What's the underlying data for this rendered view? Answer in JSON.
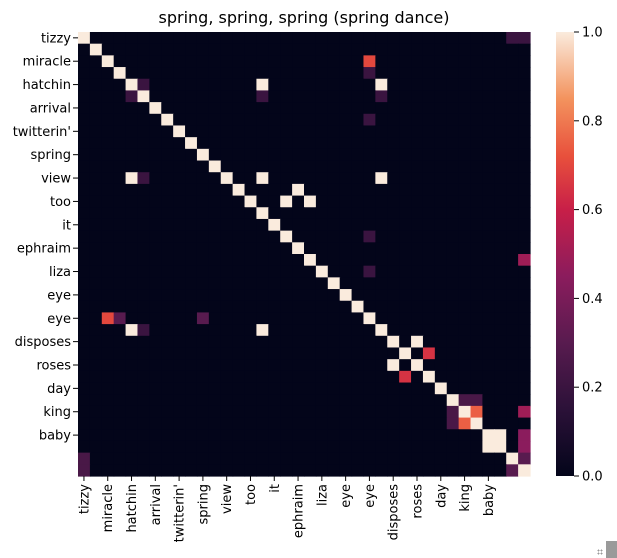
{
  "chart_data": {
    "type": "heatmap",
    "title": "spring, spring, spring (spring dance)",
    "x_tick_labels": [
      "tizzy",
      "miracle",
      "hatchin",
      "arrival",
      "twitterin'",
      "spring",
      "view",
      "too",
      "it",
      "ephraim",
      "liza",
      "eye",
      "eye",
      "disposes",
      "roses",
      "day",
      "king",
      "baby"
    ],
    "y_tick_labels": [
      "tizzy",
      "miracle",
      "hatchin",
      "arrival",
      "twitterin'",
      "spring",
      "view",
      "too",
      "it",
      "ephraim",
      "liza",
      "eye",
      "eye",
      "disposes",
      "roses",
      "day",
      "king",
      "baby"
    ],
    "rows": [
      [
        1,
        0,
        0,
        0,
        0,
        0,
        0,
        0,
        0,
        0,
        0,
        0,
        0,
        0,
        0,
        0,
        0,
        0,
        0,
        0,
        0,
        0,
        0,
        0,
        0,
        0,
        0,
        0,
        0,
        0,
        0,
        0,
        0,
        0,
        0,
        0,
        0.2,
        0.2
      ],
      [
        0,
        1,
        0,
        0,
        0,
        0,
        0,
        0,
        0,
        0,
        0,
        0,
        0,
        0,
        0,
        0,
        0,
        0,
        0,
        0,
        0,
        0,
        0,
        0,
        0,
        0,
        0,
        0,
        0,
        0,
        0,
        0,
        0,
        0,
        0,
        0,
        0,
        0
      ],
      [
        0,
        0,
        1,
        0,
        0,
        0,
        0,
        0,
        0,
        0,
        0,
        0,
        0,
        0,
        0,
        0,
        0,
        0,
        0,
        0,
        0,
        0,
        0,
        0,
        0.7,
        0,
        0,
        0,
        0,
        0,
        0,
        0,
        0,
        0,
        0,
        0,
        0,
        0
      ],
      [
        0,
        0,
        0,
        1,
        0,
        0,
        0,
        0,
        0,
        0,
        0,
        0,
        0,
        0,
        0,
        0,
        0,
        0,
        0,
        0,
        0,
        0,
        0,
        0,
        0.2,
        0,
        0,
        0,
        0,
        0,
        0,
        0,
        0,
        0,
        0,
        0,
        0,
        0
      ],
      [
        0,
        0,
        0,
        0,
        1,
        0.2,
        0,
        0,
        0,
        0,
        0,
        0,
        0,
        0,
        0,
        1,
        0,
        0,
        0,
        0,
        0,
        0,
        0,
        0,
        0,
        1,
        0,
        0,
        0,
        0,
        0,
        0,
        0,
        0,
        0,
        0,
        0,
        0
      ],
      [
        0,
        0,
        0,
        0,
        0.2,
        1,
        0,
        0,
        0,
        0,
        0,
        0,
        0,
        0,
        0,
        0.2,
        0,
        0,
        0,
        0,
        0,
        0,
        0,
        0,
        0,
        0.2,
        0,
        0,
        0,
        0,
        0,
        0,
        0,
        0,
        0,
        0,
        0,
        0
      ],
      [
        0,
        0,
        0,
        0,
        0,
        0,
        1,
        0,
        0,
        0,
        0,
        0,
        0,
        0,
        0,
        0,
        0,
        0,
        0,
        0,
        0,
        0,
        0,
        0,
        0,
        0,
        0,
        0,
        0,
        0,
        0,
        0,
        0,
        0,
        0,
        0,
        0,
        0
      ],
      [
        0,
        0,
        0,
        0,
        0,
        0,
        0,
        1,
        0,
        0,
        0,
        0,
        0,
        0,
        0,
        0,
        0,
        0,
        0,
        0,
        0,
        0,
        0,
        0,
        0.2,
        0,
        0,
        0,
        0,
        0,
        0,
        0,
        0,
        0,
        0,
        0,
        0,
        0
      ],
      [
        0,
        0,
        0,
        0,
        0,
        0,
        0,
        0,
        1,
        0,
        0,
        0,
        0,
        0,
        0,
        0,
        0,
        0,
        0,
        0,
        0,
        0,
        0,
        0,
        0,
        0,
        0,
        0,
        0,
        0,
        0,
        0,
        0,
        0,
        0,
        0,
        0,
        0
      ],
      [
        0,
        0,
        0,
        0,
        0,
        0,
        0,
        0,
        0,
        1,
        0,
        0,
        0,
        0,
        0,
        0,
        0,
        0,
        0,
        0,
        0,
        0,
        0,
        0,
        0,
        0,
        0,
        0,
        0,
        0,
        0,
        0,
        0,
        0,
        0,
        0,
        0,
        0
      ],
      [
        0,
        0,
        0,
        0,
        0,
        0,
        0,
        0,
        0,
        0,
        1,
        0,
        0,
        0,
        0,
        0,
        0,
        0,
        0,
        0,
        0,
        0,
        0,
        0,
        0,
        0,
        0,
        0,
        0,
        0,
        0,
        0,
        0,
        0,
        0,
        0,
        0,
        0
      ],
      [
        0,
        0,
        0,
        0,
        0,
        0,
        0,
        0,
        0,
        0,
        0,
        1,
        0,
        0,
        0,
        0,
        0,
        0,
        0,
        0,
        0,
        0,
        0,
        0,
        0,
        0,
        0,
        0,
        0,
        0,
        0,
        0,
        0,
        0,
        0,
        0,
        0,
        0
      ],
      [
        0,
        0,
        0,
        0,
        1,
        0.2,
        0,
        0,
        0,
        0,
        0,
        0,
        1,
        0,
        0,
        1,
        0,
        0,
        0,
        0,
        0,
        0,
        0,
        0,
        0,
        1,
        0,
        0,
        0,
        0,
        0,
        0,
        0,
        0,
        0,
        0,
        0,
        0
      ],
      [
        0,
        0,
        0,
        0,
        0,
        0,
        0,
        0,
        0,
        0,
        0,
        0,
        0,
        1,
        0,
        0,
        0,
        0,
        1,
        0,
        0,
        0,
        0,
        0,
        0,
        0,
        0,
        0,
        0,
        0,
        0,
        0,
        0,
        0,
        0,
        0,
        0,
        0
      ],
      [
        0,
        0,
        0,
        0,
        0,
        0,
        0,
        0,
        0,
        0,
        0,
        0,
        0,
        0,
        1,
        0,
        0,
        1,
        0,
        1,
        0,
        0,
        0,
        0,
        0,
        0,
        0,
        0,
        0,
        0,
        0,
        0,
        0,
        0,
        0,
        0,
        0,
        0
      ],
      [
        0,
        0,
        0,
        0,
        0,
        0,
        0,
        0,
        0,
        0,
        0,
        0,
        0,
        0,
        0,
        1,
        0,
        0,
        0,
        0,
        0,
        0,
        0,
        0,
        0,
        0,
        0,
        0,
        0,
        0,
        0,
        0,
        0,
        0,
        0,
        0,
        0,
        0
      ],
      [
        0,
        0,
        0,
        0,
        0,
        0,
        0,
        0,
        0,
        0,
        0,
        0,
        0,
        0,
        0,
        0,
        1,
        0,
        0,
        0,
        0,
        0,
        0,
        0,
        0,
        0,
        0,
        0,
        0,
        0,
        0,
        0,
        0,
        0,
        0,
        0,
        0,
        0
      ],
      [
        0,
        0,
        0,
        0,
        0,
        0,
        0,
        0,
        0,
        0,
        0,
        0,
        0,
        0,
        0,
        0,
        0,
        1,
        0,
        0,
        0,
        0,
        0,
        0,
        0.2,
        0,
        0,
        0,
        0,
        0,
        0,
        0,
        0,
        0,
        0,
        0,
        0,
        0
      ],
      [
        0,
        0,
        0,
        0,
        0,
        0,
        0,
        0,
        0,
        0,
        0,
        0,
        0,
        0,
        0,
        0,
        0,
        0,
        1,
        0,
        0,
        0,
        0,
        0,
        0,
        0,
        0,
        0,
        0,
        0,
        0,
        0,
        0,
        0,
        0,
        0,
        0,
        0
      ],
      [
        0,
        0,
        0,
        0,
        0,
        0,
        0,
        0,
        0,
        0,
        0,
        0,
        0,
        0,
        0,
        0,
        0,
        0,
        0,
        1,
        0,
        0,
        0,
        0,
        0,
        0,
        0,
        0,
        0,
        0,
        0,
        0,
        0,
        0,
        0,
        0,
        0,
        0.5
      ],
      [
        0,
        0,
        0,
        0,
        0,
        0,
        0,
        0,
        0,
        0,
        0,
        0,
        0,
        0,
        0,
        0,
        0,
        0,
        0,
        0,
        1,
        0,
        0,
        0,
        0.2,
        0,
        0,
        0,
        0,
        0,
        0,
        0,
        0,
        0,
        0,
        0,
        0,
        0
      ],
      [
        0,
        0,
        0,
        0,
        0,
        0,
        0,
        0,
        0,
        0,
        0,
        0,
        0,
        0,
        0,
        0,
        0,
        0,
        0,
        0,
        0,
        1,
        0,
        0,
        0,
        0,
        0,
        0,
        0,
        0,
        0,
        0,
        0,
        0,
        0,
        0,
        0,
        0
      ],
      [
        0,
        0,
        0,
        0,
        0,
        0,
        0,
        0,
        0,
        0,
        0,
        0,
        0,
        0,
        0,
        0,
        0,
        0,
        0,
        0,
        0,
        0,
        1,
        0,
        0,
        0,
        0,
        0,
        0,
        0,
        0,
        0,
        0,
        0,
        0,
        0,
        0,
        0
      ],
      [
        0,
        0,
        0,
        0,
        0,
        0,
        0,
        0,
        0,
        0,
        0,
        0,
        0,
        0,
        0,
        0,
        0,
        0,
        0,
        0,
        0,
        0,
        0,
        1,
        0,
        0,
        0,
        0,
        0,
        0,
        0,
        0,
        0,
        0,
        0,
        0,
        0,
        0
      ],
      [
        0,
        0,
        0.7,
        0.3,
        0,
        0,
        0,
        0,
        0,
        0,
        0.3,
        0,
        0,
        0,
        0,
        0,
        0,
        0,
        0,
        0,
        0,
        0,
        0,
        0,
        1,
        0,
        0,
        0,
        0,
        0,
        0,
        0,
        0,
        0,
        0,
        0,
        0,
        0
      ],
      [
        0,
        0,
        0,
        0,
        1,
        0.2,
        0,
        0,
        0,
        0,
        0,
        0,
        0,
        0,
        0,
        1,
        0,
        0,
        0,
        0,
        0,
        0,
        0,
        0,
        0,
        1,
        0,
        0,
        0,
        0,
        0,
        0,
        0,
        0,
        0,
        0,
        0,
        0
      ],
      [
        0,
        0,
        0,
        0,
        0,
        0,
        0,
        0,
        0,
        0,
        0,
        0,
        0,
        0,
        0,
        0,
        0,
        0,
        0,
        0,
        0,
        0,
        0,
        0,
        0,
        0,
        1,
        0,
        1,
        0,
        0,
        0,
        0,
        0,
        0,
        0,
        0,
        0
      ],
      [
        0,
        0,
        0,
        0,
        0,
        0,
        0,
        0,
        0,
        0,
        0,
        0,
        0,
        0,
        0,
        0,
        0,
        0,
        0,
        0,
        0,
        0,
        0,
        0,
        0,
        0,
        0,
        1,
        0,
        0.65,
        0,
        0,
        0,
        0,
        0,
        0,
        0,
        0
      ],
      [
        0,
        0,
        0,
        0,
        0,
        0,
        0,
        0,
        0,
        0,
        0,
        0,
        0,
        0,
        0,
        0,
        0,
        0,
        0,
        0,
        0,
        0,
        0,
        0,
        0,
        0,
        1,
        0,
        1,
        0,
        0,
        0,
        0,
        0,
        0,
        0,
        0,
        0
      ],
      [
        0,
        0,
        0,
        0,
        0,
        0,
        0,
        0,
        0,
        0,
        0,
        0,
        0,
        0,
        0,
        0,
        0,
        0,
        0,
        0,
        0,
        0,
        0,
        0,
        0,
        0,
        0,
        0.65,
        0,
        1,
        0,
        0,
        0,
        0,
        0,
        0,
        0,
        0
      ],
      [
        0,
        0,
        0,
        0,
        0,
        0,
        0,
        0,
        0,
        0,
        0,
        0,
        0,
        0,
        0,
        0,
        0,
        0,
        0,
        0,
        0,
        0,
        0,
        0,
        0,
        0,
        0,
        0,
        0,
        0,
        1,
        0,
        0,
        0,
        0,
        0,
        0,
        0
      ],
      [
        0,
        0,
        0,
        0,
        0,
        0,
        0,
        0,
        0,
        0,
        0,
        0,
        0,
        0,
        0,
        0,
        0,
        0,
        0,
        0,
        0,
        0,
        0,
        0,
        0,
        0,
        0,
        0,
        0,
        0,
        0,
        1,
        0.25,
        0.25,
        0,
        0,
        0,
        0
      ],
      [
        0,
        0,
        0,
        0,
        0,
        0,
        0,
        0,
        0,
        0,
        0,
        0,
        0,
        0,
        0,
        0,
        0,
        0,
        0,
        0,
        0,
        0,
        0,
        0,
        0,
        0,
        0,
        0,
        0,
        0,
        0,
        0.25,
        1,
        0.75,
        0,
        0,
        0,
        0.5
      ],
      [
        0,
        0,
        0,
        0,
        0,
        0,
        0,
        0,
        0,
        0,
        0,
        0,
        0,
        0,
        0,
        0,
        0,
        0,
        0,
        0,
        0,
        0,
        0,
        0,
        0,
        0,
        0,
        0,
        0,
        0,
        0,
        0.25,
        0.75,
        1,
        0,
        0,
        0,
        0
      ],
      [
        0,
        0,
        0,
        0,
        0,
        0,
        0,
        0,
        0,
        0,
        0,
        0,
        0,
        0,
        0,
        0,
        0,
        0,
        0,
        0,
        0,
        0,
        0,
        0,
        0,
        0,
        0,
        0,
        0,
        0,
        0,
        0,
        0,
        0,
        1,
        1,
        0,
        0.45
      ],
      [
        0,
        0,
        0,
        0,
        0,
        0,
        0,
        0,
        0,
        0,
        0,
        0,
        0,
        0,
        0,
        0,
        0,
        0,
        0,
        0,
        0,
        0,
        0,
        0,
        0,
        0,
        0,
        0,
        0,
        0,
        0,
        0,
        0,
        0,
        1,
        1,
        0,
        0.45
      ],
      [
        0.25,
        0,
        0,
        0,
        0,
        0,
        0,
        0,
        0,
        0,
        0,
        0,
        0,
        0,
        0,
        0,
        0,
        0,
        0,
        0,
        0,
        0,
        0,
        0,
        0,
        0,
        0,
        0,
        0,
        0,
        0,
        0,
        0,
        0,
        0,
        0,
        1,
        0.3
      ],
      [
        0.25,
        0,
        0,
        0,
        0,
        0,
        0,
        0,
        0,
        0,
        0,
        0,
        0,
        0,
        0,
        0,
        0,
        0,
        0,
        0,
        0,
        0,
        0,
        0,
        0,
        0,
        0,
        0,
        0,
        0,
        0,
        0,
        0,
        0,
        0,
        0,
        0.3,
        1
      ]
    ],
    "colorbar": {
      "min": 0,
      "max": 1,
      "ticks": [
        "0.0",
        "0.2",
        "0.4",
        "0.6",
        "0.8",
        "1.0"
      ]
    }
  }
}
